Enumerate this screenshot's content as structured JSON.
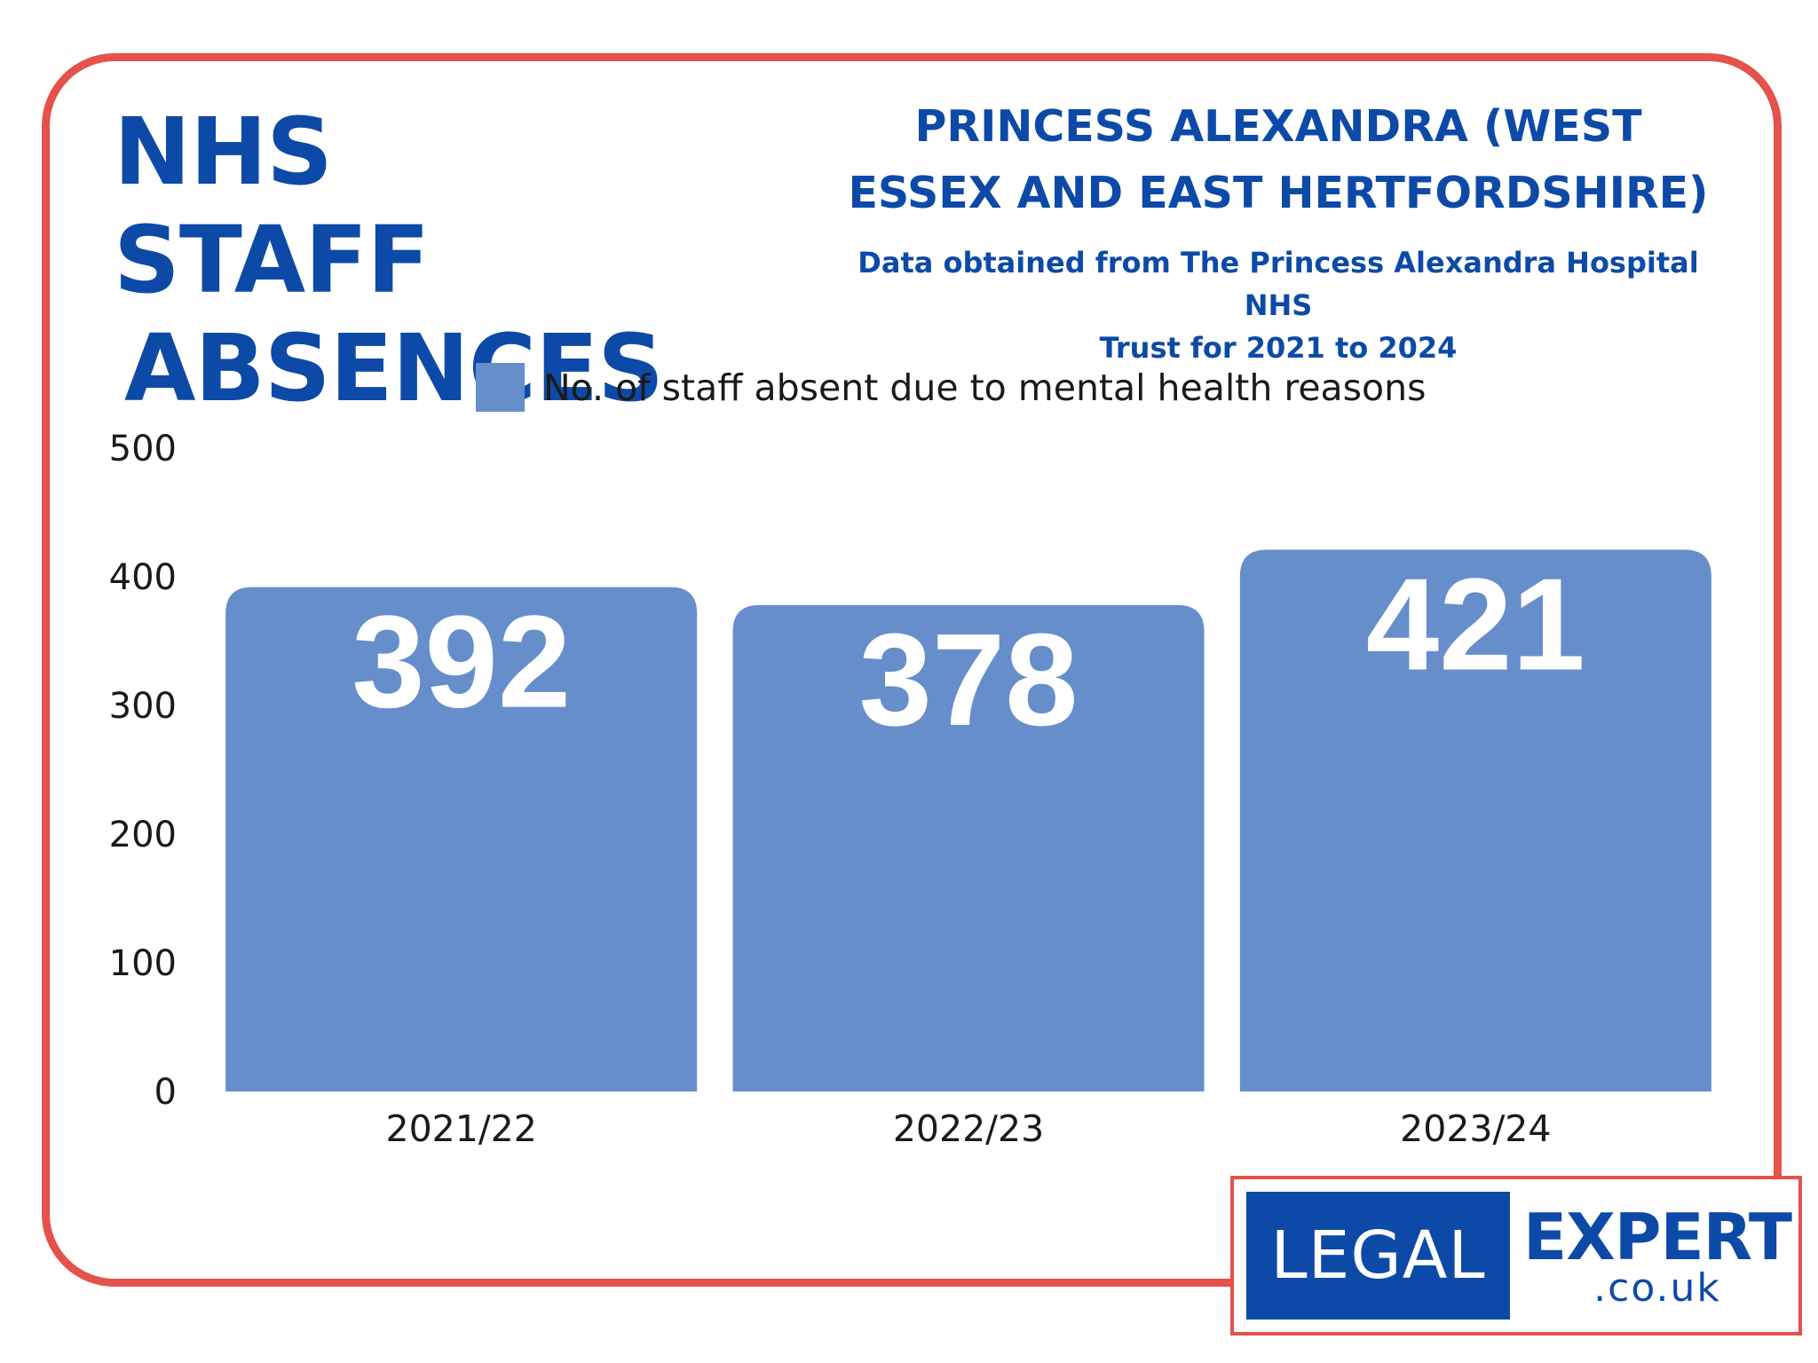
{
  "header": {
    "title_line1": "NHS STAFF",
    "title_line2": "ABSENCES",
    "subtitle_line1": "PRINCESS ALEXANDRA (WEST",
    "subtitle_line2": "ESSEX AND EAST HERTFORDSHIRE)",
    "source_line1": "Data obtained from The Princess Alexandra Hospital NHS",
    "source_line2": "Trust for 2021 to 2024"
  },
  "colors": {
    "brand_blue": "#0d4aa8",
    "bar_blue": "#668ecb",
    "frame_red": "#e5514b"
  },
  "logo": {
    "left_text": "LEGAL",
    "right_text": "EXPERT",
    "domain": ".co.uk"
  },
  "chart_data": {
    "type": "bar",
    "categories": [
      "2021/22",
      "2022/23",
      "2023/24"
    ],
    "series": [
      {
        "name": "No. of staff absent due to mental health reasons",
        "values": [
          392,
          378,
          421
        ]
      }
    ],
    "data_labels": [
      "392",
      "378",
      "421"
    ],
    "yticks": [
      0,
      100,
      200,
      300,
      400,
      500
    ],
    "ylim": [
      0,
      500
    ],
    "grid": false,
    "legend": "top-center",
    "xlabel": "",
    "ylabel": ""
  }
}
